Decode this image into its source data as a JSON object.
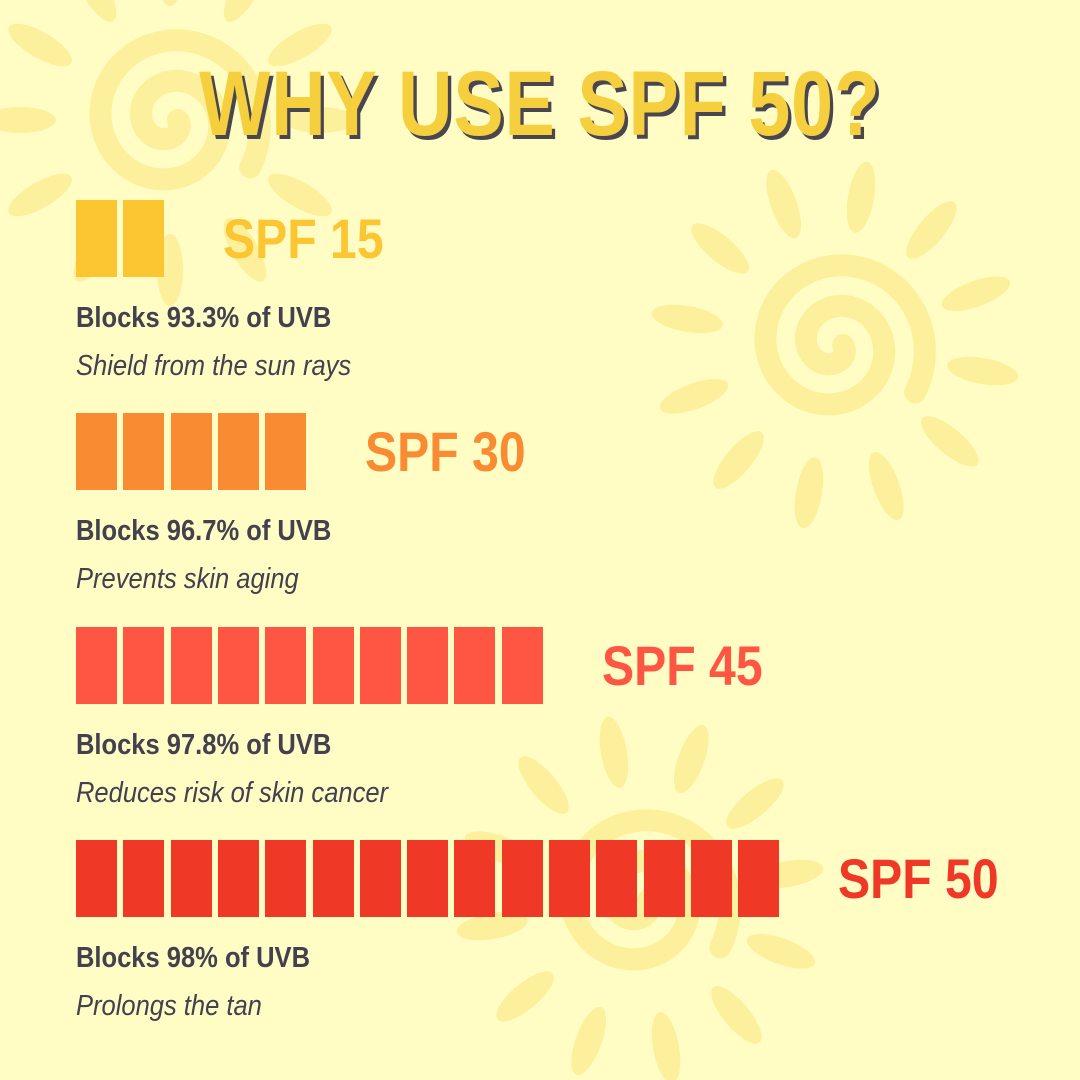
{
  "title": "WHY USE SPF 50?",
  "colors": {
    "background": "#FFFDC4",
    "title": "#F6CF3E",
    "text": "#434050",
    "sun": "#FCF09C"
  },
  "chart_data": {
    "type": "bar",
    "title": "WHY USE SPF 50?",
    "unit": "blocks",
    "categories": [
      "SPF 15",
      "SPF 30",
      "SPF 45",
      "SPF 50"
    ],
    "values": [
      2,
      5,
      10,
      15
    ],
    "items": [
      {
        "label": "SPF 15",
        "blocks": 2,
        "color": "#FCC532",
        "stat": "Blocks 93.3% of UVB",
        "desc": "Shield from the sun rays"
      },
      {
        "label": "SPF 30",
        "blocks": 5,
        "color": "#F98B33",
        "stat": "Blocks 96.7% of UVB",
        "desc": "Prevents skin aging"
      },
      {
        "label": "SPF 45",
        "blocks": 10,
        "color": "#FF5543",
        "stat": "Blocks 97.8% of UVB",
        "desc": "Reduces risk of skin cancer"
      },
      {
        "label": "SPF 50",
        "blocks": 15,
        "color": "#EF3826",
        "stat": "Blocks 98% of UVB",
        "desc": "Prolongs the tan"
      }
    ]
  }
}
